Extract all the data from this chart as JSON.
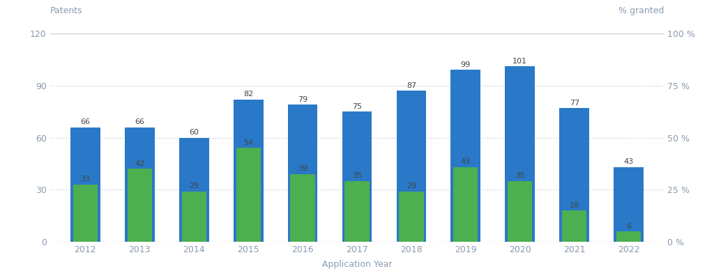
{
  "years": [
    2012,
    2013,
    2014,
    2015,
    2016,
    2017,
    2018,
    2019,
    2020,
    2021,
    2022
  ],
  "total_patents": [
    66,
    66,
    60,
    82,
    79,
    75,
    87,
    99,
    101,
    77,
    43
  ],
  "granted_patents": [
    33,
    42,
    29,
    54,
    39,
    35,
    29,
    43,
    35,
    18,
    6
  ],
  "bar_color_blue": "#2979C8",
  "bar_color_green": "#4CAF50",
  "background_color": "#ffffff",
  "grid_color": "#c8cdd6",
  "text_color": "#8a9bb0",
  "label_color": "#444444",
  "ylabel_left": "Patents",
  "ylabel_right": "% granted",
  "xlabel": "Application Year",
  "ylim_left": [
    0,
    120
  ],
  "ylim_right": [
    0,
    100
  ],
  "yticks_left": [
    0,
    30,
    60,
    90,
    120
  ],
  "yticks_right": [
    0,
    25,
    50,
    75,
    100
  ],
  "ytick_labels_right": [
    "0 %",
    "25 %",
    "50 %",
    "75 %",
    "100 %"
  ],
  "ytick_labels_left": [
    "0",
    "30",
    "60",
    "90",
    "120"
  ],
  "bar_width": 0.55,
  "axis_label_fontsize": 9,
  "tick_fontsize": 9,
  "bar_label_fontsize": 8
}
